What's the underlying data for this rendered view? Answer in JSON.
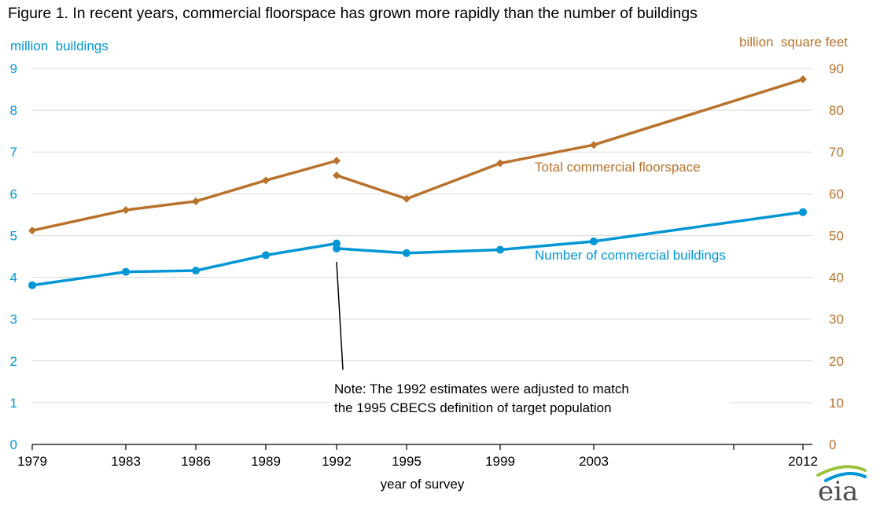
{
  "title": "Figure 1.  In recent years, commercial floorspace has grown more rapidly than the number of buildings",
  "colors": {
    "buildings": "#0096d6",
    "floorspace": "#b8722c",
    "axis": "#000000",
    "grid": "#d9d9d9"
  },
  "chart_data": {
    "type": "line",
    "title": "Figure 1.  In recent years, commercial floorspace has grown more rapidly than the number of buildings",
    "xlabel": "year of survey",
    "x_ticks": [
      "1979",
      "1983",
      "1986",
      "1989",
      "1992",
      "1995",
      "1999",
      "2003",
      "2012"
    ],
    "y_left": {
      "label": "million  buildings",
      "ylim": [
        0,
        9
      ],
      "ticks": [
        "0",
        "1",
        "2",
        "3",
        "4",
        "5",
        "6",
        "7",
        "8",
        "9"
      ]
    },
    "y_right": {
      "label": "billion  square feet",
      "ylim": [
        0,
        90
      ],
      "ticks": [
        "0",
        "10",
        "20",
        "30",
        "40",
        "50",
        "60",
        "70",
        "80",
        "90"
      ]
    },
    "grid": true,
    "series": [
      {
        "name": "Total commercial floorspace",
        "axis": "right",
        "marker": "diamond",
        "segments": [
          [
            {
              "x": 1979,
              "y": 51.2
            },
            {
              "x": 1983,
              "y": 56.1
            },
            {
              "x": 1986,
              "y": 58.2
            },
            {
              "x": 1989,
              "y": 63.2
            },
            {
              "x": 1992,
              "y": 67.9
            }
          ],
          [
            {
              "x": 1992,
              "y": 64.4
            },
            {
              "x": 1995,
              "y": 58.8
            },
            {
              "x": 1999,
              "y": 67.3
            },
            {
              "x": 2003,
              "y": 71.7
            },
            {
              "x": 2012,
              "y": 87.4
            }
          ]
        ]
      },
      {
        "name": "Number of commercial buildings",
        "axis": "left",
        "marker": "circle",
        "segments": [
          [
            {
              "x": 1979,
              "y": 3.81
            },
            {
              "x": 1983,
              "y": 4.13
            },
            {
              "x": 1986,
              "y": 4.16
            },
            {
              "x": 1989,
              "y": 4.53
            },
            {
              "x": 1992,
              "y": 4.81
            }
          ],
          [
            {
              "x": 1992,
              "y": 4.69
            },
            {
              "x": 1995,
              "y": 4.58
            },
            {
              "x": 1999,
              "y": 4.66
            },
            {
              "x": 2003,
              "y": 4.86
            },
            {
              "x": 2012,
              "y": 5.56
            }
          ]
        ]
      }
    ],
    "annotations": {
      "note_line1": "Note: The 1992 estimates were adjusted to match",
      "note_line2": "the 1995 CBECS definition of target population"
    }
  },
  "logo": {
    "text": "eia",
    "icon": "eia-logo-icon"
  }
}
